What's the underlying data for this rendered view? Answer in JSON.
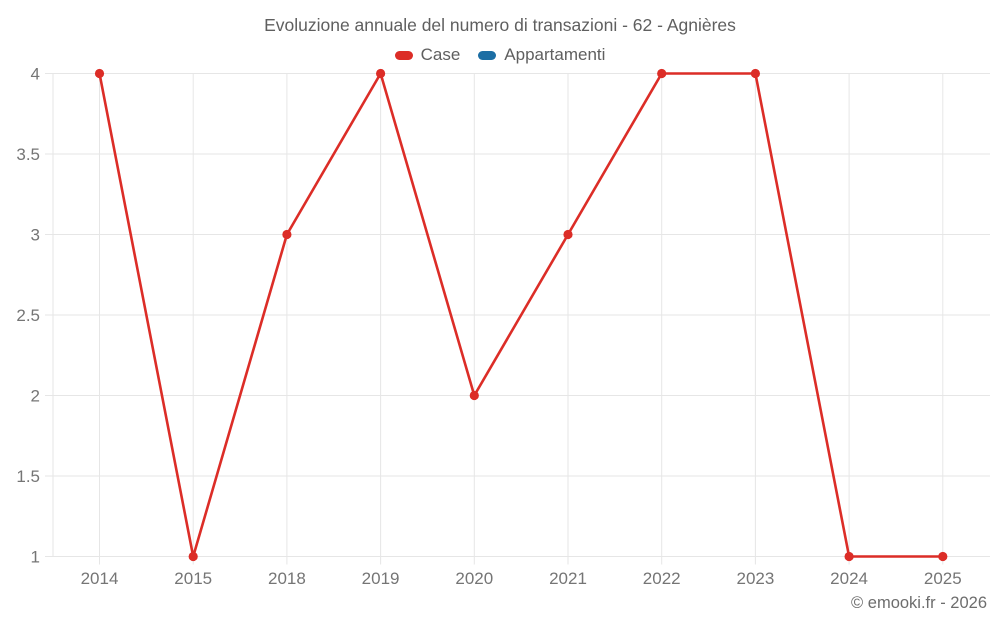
{
  "chart_data": {
    "type": "line",
    "title": "Evoluzione annuale del numero di transazioni - 62 - Agnières",
    "categories": [
      "2014",
      "2015",
      "2018",
      "2019",
      "2020",
      "2021",
      "2022",
      "2023",
      "2024",
      "2025"
    ],
    "series": [
      {
        "name": "Case",
        "color": "#dc2d27",
        "values": [
          4,
          1,
          3,
          4,
          2,
          3,
          4,
          4,
          1,
          1
        ]
      },
      {
        "name": "Appartamenti",
        "color": "#1c6ea4",
        "values": []
      }
    ],
    "xlabel": "",
    "ylabel": "",
    "ylim": [
      1,
      4
    ],
    "yticks": [
      1,
      1.5,
      2,
      2.5,
      3,
      3.5,
      4
    ],
    "grid": true,
    "legend_position": "top",
    "marker": "circle",
    "colors": {
      "gridline": "#e6e6e6",
      "tick_label": "#757575",
      "title_text": "#5f5f5f"
    }
  },
  "watermark": "© emooki.fr - 2026"
}
